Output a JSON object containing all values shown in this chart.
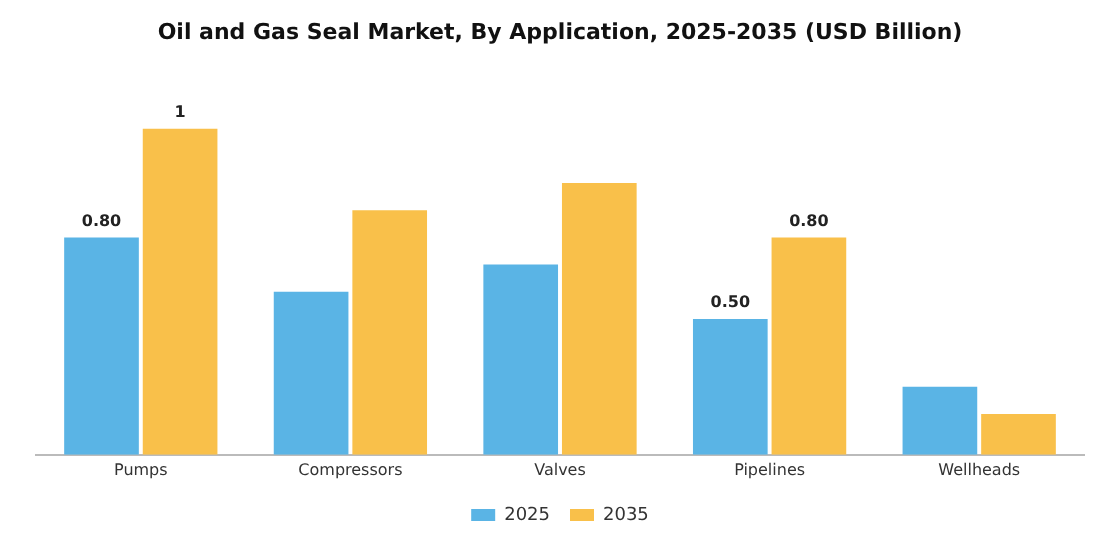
{
  "chart_data": {
    "type": "bar",
    "title": "Oil and Gas Seal Market, By Application, 2025-2035 (USD Billion)",
    "categories": [
      "Pumps",
      "Compressors",
      "Valves",
      "Pipelines",
      "Wellheads"
    ],
    "series": [
      {
        "name": "2025",
        "color": "#5ab4e5",
        "values": [
          0.8,
          0.6,
          0.7,
          0.5,
          0.25
        ],
        "value_labels": [
          "0.80",
          null,
          null,
          "0.50",
          null
        ]
      },
      {
        "name": "2035",
        "color": "#f9c04a",
        "values": [
          1.2,
          0.9,
          1.0,
          0.8,
          0.15
        ],
        "value_labels": [
          "1",
          null,
          null,
          "0.80",
          null
        ]
      }
    ],
    "legend": "bottom",
    "grid": false,
    "tick_labels": "x"
  }
}
